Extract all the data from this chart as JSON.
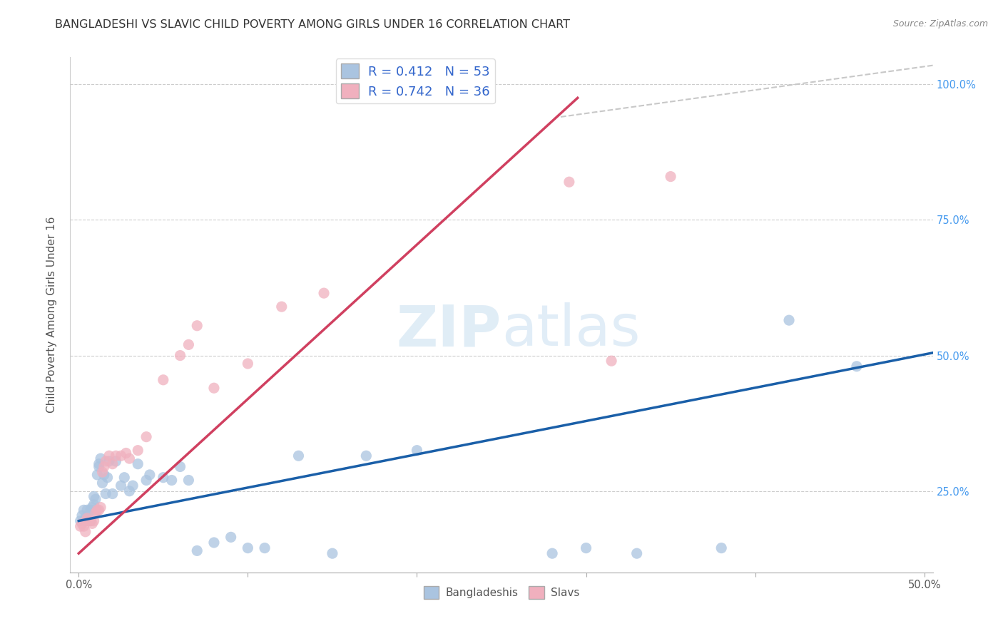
{
  "title": "BANGLADESHI VS SLAVIC CHILD POVERTY AMONG GIRLS UNDER 16 CORRELATION CHART",
  "source": "Source: ZipAtlas.com",
  "ylabel": "Child Poverty Among Girls Under 16",
  "xlabel_ticks": [
    "0.0%",
    "",
    "",
    "",
    "",
    "50.0%"
  ],
  "xlabel_vals": [
    0,
    0.1,
    0.2,
    0.3,
    0.4,
    0.5
  ],
  "ylabel_ticks": [
    "25.0%",
    "50.0%",
    "75.0%",
    "100.0%"
  ],
  "ylabel_vals": [
    0.25,
    0.5,
    0.75,
    1.0
  ],
  "right_ylabel_ticks": [
    "25.0%",
    "50.0%",
    "75.0%",
    "100.0%"
  ],
  "xlim": [
    -0.005,
    0.505
  ],
  "ylim": [
    0.1,
    1.05
  ],
  "legend_r_blue": "R = 0.412   N = 53",
  "legend_r_pink": "R = 0.742   N = 36",
  "blue_color": "#aac4e0",
  "pink_color": "#f0b0be",
  "line_blue": "#1a5fa8",
  "line_pink": "#d04060",
  "line_gray": "#c8c8c8",
  "watermark_zip": "ZIP",
  "watermark_atlas": "atlas",
  "title_fontsize": 11.5,
  "source_fontsize": 9,
  "blue_line_x": [
    0.0,
    0.505
  ],
  "blue_line_y": [
    0.195,
    0.505
  ],
  "pink_line_x": [
    0.0,
    0.295
  ],
  "pink_line_y": [
    0.135,
    0.975
  ],
  "gray_line_x": [
    0.285,
    0.505
  ],
  "gray_line_y": [
    0.94,
    1.035
  ],
  "bangladeshi_x": [
    0.001,
    0.002,
    0.003,
    0.003,
    0.004,
    0.005,
    0.005,
    0.006,
    0.006,
    0.007,
    0.007,
    0.008,
    0.009,
    0.009,
    0.01,
    0.01,
    0.011,
    0.012,
    0.012,
    0.013,
    0.014,
    0.015,
    0.016,
    0.017,
    0.018,
    0.02,
    0.022,
    0.025,
    0.027,
    0.03,
    0.032,
    0.035,
    0.04,
    0.042,
    0.05,
    0.055,
    0.06,
    0.065,
    0.07,
    0.08,
    0.09,
    0.1,
    0.11,
    0.13,
    0.15,
    0.17,
    0.2,
    0.28,
    0.3,
    0.33,
    0.38,
    0.42,
    0.46
  ],
  "bangladeshi_y": [
    0.195,
    0.205,
    0.195,
    0.215,
    0.2,
    0.195,
    0.215,
    0.195,
    0.2,
    0.195,
    0.215,
    0.22,
    0.225,
    0.24,
    0.215,
    0.235,
    0.28,
    0.3,
    0.295,
    0.31,
    0.265,
    0.28,
    0.245,
    0.275,
    0.305,
    0.245,
    0.305,
    0.26,
    0.275,
    0.25,
    0.26,
    0.3,
    0.27,
    0.28,
    0.275,
    0.27,
    0.295,
    0.27,
    0.14,
    0.155,
    0.165,
    0.145,
    0.145,
    0.315,
    0.135,
    0.315,
    0.325,
    0.135,
    0.145,
    0.135,
    0.145,
    0.565,
    0.48
  ],
  "slavic_x": [
    0.001,
    0.002,
    0.003,
    0.004,
    0.005,
    0.005,
    0.006,
    0.007,
    0.008,
    0.009,
    0.01,
    0.011,
    0.012,
    0.013,
    0.014,
    0.015,
    0.016,
    0.018,
    0.02,
    0.022,
    0.025,
    0.028,
    0.03,
    0.035,
    0.04,
    0.05,
    0.06,
    0.065,
    0.07,
    0.08,
    0.1,
    0.12,
    0.145,
    0.29,
    0.315,
    0.35
  ],
  "slavic_y": [
    0.185,
    0.19,
    0.185,
    0.175,
    0.195,
    0.2,
    0.195,
    0.195,
    0.19,
    0.195,
    0.21,
    0.215,
    0.215,
    0.22,
    0.285,
    0.295,
    0.305,
    0.315,
    0.3,
    0.315,
    0.315,
    0.32,
    0.31,
    0.325,
    0.35,
    0.455,
    0.5,
    0.52,
    0.555,
    0.44,
    0.485,
    0.59,
    0.615,
    0.82,
    0.49,
    0.83
  ]
}
